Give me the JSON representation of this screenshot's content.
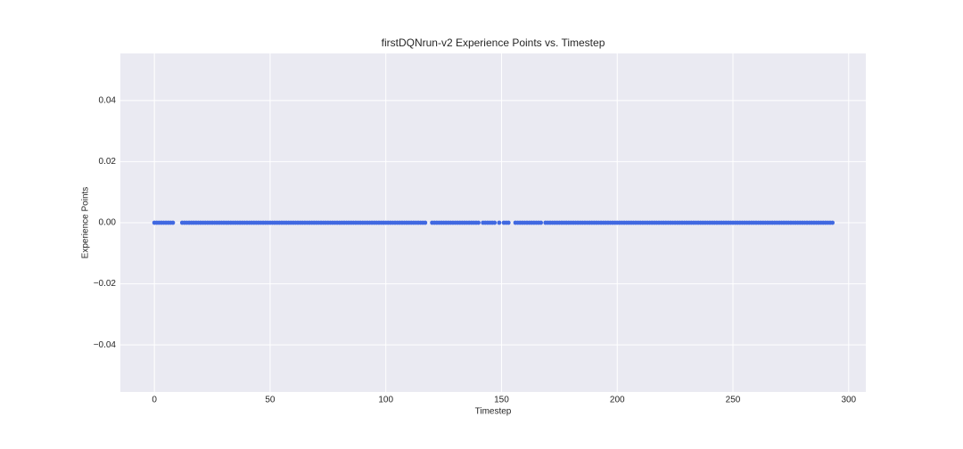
{
  "chart_data": {
    "type": "scatter",
    "title": "firstDQNrun-v2 Experience Points vs. Timestep",
    "xlabel": "Timestep",
    "ylabel": "Experience Points",
    "color": "#4169e1",
    "grid": true,
    "xlim": [
      -14.7,
      307.4
    ],
    "ylim": [
      -0.0554,
      0.0554
    ],
    "xticks": [
      0,
      50,
      100,
      150,
      200,
      250,
      300
    ],
    "yticks": [
      {
        "value": -0.04,
        "label": "−0.04"
      },
      {
        "value": -0.02,
        "label": "−0.02"
      },
      {
        "value": 0,
        "label": "0.00"
      },
      {
        "value": 0.02,
        "label": "0.02"
      },
      {
        "value": 0.04,
        "label": "0.04"
      }
    ],
    "x": [
      0,
      1,
      2,
      3,
      4,
      5,
      6,
      7,
      8,
      12,
      13,
      14,
      15,
      16,
      17,
      18,
      19,
      20,
      21,
      22,
      23,
      24,
      25,
      26,
      27,
      28,
      29,
      30,
      31,
      32,
      33,
      34,
      35,
      36,
      37,
      38,
      39,
      40,
      41,
      42,
      43,
      44,
      45,
      46,
      47,
      48,
      49,
      50,
      51,
      52,
      53,
      54,
      55,
      56,
      57,
      58,
      59,
      60,
      61,
      62,
      63,
      64,
      65,
      66,
      67,
      68,
      69,
      70,
      71,
      72,
      73,
      74,
      75,
      76,
      77,
      78,
      79,
      80,
      81,
      82,
      83,
      84,
      85,
      86,
      87,
      88,
      89,
      90,
      91,
      92,
      93,
      94,
      95,
      96,
      97,
      98,
      99,
      100,
      101,
      102,
      103,
      104,
      105,
      106,
      107,
      108,
      109,
      110,
      111,
      112,
      113,
      114,
      115,
      116,
      117,
      120,
      121,
      122,
      123,
      124,
      125,
      126,
      127,
      128,
      129,
      130,
      131,
      132,
      133,
      134,
      135,
      136,
      137,
      138,
      139,
      140,
      142,
      143,
      144,
      145,
      146,
      147,
      149,
      151,
      152,
      153,
      156,
      157,
      158,
      159,
      160,
      161,
      162,
      163,
      164,
      165,
      166,
      167,
      169,
      170,
      171,
      172,
      173,
      174,
      175,
      176,
      177,
      178,
      179,
      180,
      181,
      182,
      183,
      184,
      185,
      186,
      187,
      188,
      189,
      190,
      191,
      192,
      193,
      194,
      195,
      196,
      197,
      198,
      199,
      200,
      201,
      202,
      203,
      204,
      205,
      206,
      207,
      208,
      209,
      210,
      211,
      212,
      213,
      214,
      215,
      216,
      217,
      218,
      219,
      220,
      221,
      222,
      223,
      224,
      225,
      226,
      227,
      228,
      229,
      230,
      231,
      232,
      233,
      234,
      235,
      236,
      237,
      238,
      239,
      240,
      241,
      242,
      243,
      244,
      245,
      246,
      247,
      248,
      249,
      250,
      251,
      252,
      253,
      254,
      255,
      256,
      257,
      258,
      259,
      260,
      261,
      262,
      263,
      264,
      265,
      266,
      267,
      268,
      269,
      270,
      271,
      272,
      273,
      274,
      275,
      276,
      277,
      278,
      279,
      280,
      281,
      282,
      283,
      284,
      285,
      286,
      287,
      288,
      289,
      290,
      291,
      292,
      293
    ],
    "values": [
      0,
      0,
      0,
      0,
      0,
      0,
      0,
      0,
      0,
      0,
      0,
      0,
      0,
      0,
      0,
      0,
      0,
      0,
      0,
      0,
      0,
      0,
      0,
      0,
      0,
      0,
      0,
      0,
      0,
      0,
      0,
      0,
      0,
      0,
      0,
      0,
      0,
      0,
      0,
      0,
      0,
      0,
      0,
      0,
      0,
      0,
      0,
      0,
      0,
      0,
      0,
      0,
      0,
      0,
      0,
      0,
      0,
      0,
      0,
      0,
      0,
      0,
      0,
      0,
      0,
      0,
      0,
      0,
      0,
      0,
      0,
      0,
      0,
      0,
      0,
      0,
      0,
      0,
      0,
      0,
      0,
      0,
      0,
      0,
      0,
      0,
      0,
      0,
      0,
      0,
      0,
      0,
      0,
      0,
      0,
      0,
      0,
      0,
      0,
      0,
      0,
      0,
      0,
      0,
      0,
      0,
      0,
      0,
      0,
      0,
      0,
      0,
      0,
      0,
      0,
      0,
      0,
      0,
      0,
      0,
      0,
      0,
      0,
      0,
      0,
      0,
      0,
      0,
      0,
      0,
      0,
      0,
      0,
      0,
      0,
      0,
      0,
      0,
      0,
      0,
      0,
      0,
      0,
      0,
      0,
      0,
      0,
      0,
      0,
      0,
      0,
      0,
      0,
      0,
      0,
      0,
      0,
      0,
      0,
      0,
      0,
      0,
      0,
      0,
      0,
      0,
      0,
      0,
      0,
      0,
      0,
      0,
      0,
      0,
      0,
      0,
      0,
      0,
      0,
      0,
      0,
      0,
      0,
      0,
      0,
      0,
      0,
      0,
      0,
      0,
      0,
      0,
      0,
      0,
      0,
      0,
      0,
      0,
      0,
      0,
      0,
      0,
      0,
      0,
      0,
      0,
      0,
      0,
      0,
      0,
      0,
      0,
      0,
      0,
      0,
      0,
      0,
      0,
      0,
      0,
      0,
      0,
      0,
      0,
      0,
      0,
      0,
      0,
      0,
      0,
      0,
      0,
      0,
      0,
      0,
      0,
      0,
      0,
      0,
      0,
      0,
      0,
      0,
      0,
      0,
      0,
      0,
      0,
      0,
      0,
      0,
      0,
      0,
      0,
      0,
      0,
      0,
      0,
      0,
      0,
      0,
      0,
      0,
      0,
      0,
      0,
      0,
      0,
      0,
      0,
      0,
      0,
      0,
      0,
      0,
      0,
      0,
      0,
      0,
      0,
      0,
      0,
      0
    ]
  }
}
